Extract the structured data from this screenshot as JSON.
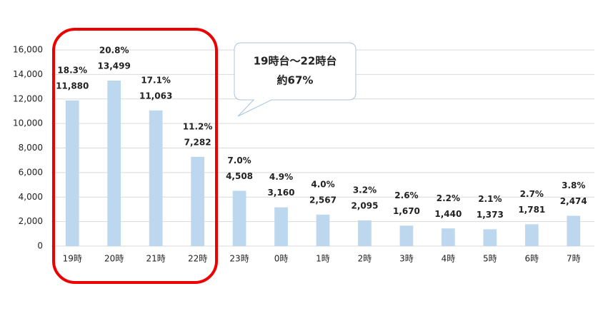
{
  "chart_data": {
    "type": "bar",
    "categories": [
      "19時",
      "20時",
      "21時",
      "22時",
      "23時",
      "0時",
      "1時",
      "2時",
      "3時",
      "4時",
      "5時",
      "6時",
      "7時"
    ],
    "values": [
      11880,
      13499,
      11063,
      7282,
      4508,
      3160,
      2567,
      2095,
      1670,
      1440,
      1373,
      1781,
      2474
    ],
    "value_labels": [
      "11,880",
      "13,499",
      "11,063",
      "7,282",
      "4,508",
      "3,160",
      "2,567",
      "2,095",
      "1,670",
      "1,440",
      "1,373",
      "1,781",
      "2,474"
    ],
    "percent_labels": [
      "18.3%",
      "20.8%",
      "17.1%",
      "11.2%",
      "7.0%",
      "4.9%",
      "4.0%",
      "3.2%",
      "2.6%",
      "2.2%",
      "2.1%",
      "2.7%",
      "3.8%"
    ],
    "color": "#bdd7ee",
    "ylim": [
      0,
      16000
    ],
    "yticks": [
      0,
      {
        "value": 2000,
        "label": "2,000"
      },
      {
        "value": 4000,
        "label": "4,000"
      },
      {
        "value": 6000,
        "label": "6,000"
      },
      {
        "value": 8000,
        "label": "8,000"
      },
      {
        "value": 10000,
        "label": "10,000"
      },
      {
        "value": 12000,
        "label": "12,000"
      },
      {
        "value": 14000,
        "label": "14,000"
      },
      {
        "value": 16000,
        "label": "16,000"
      }
    ],
    "grid": true,
    "annotation": [
      "19時台～22時台",
      "約67%"
    ]
  }
}
